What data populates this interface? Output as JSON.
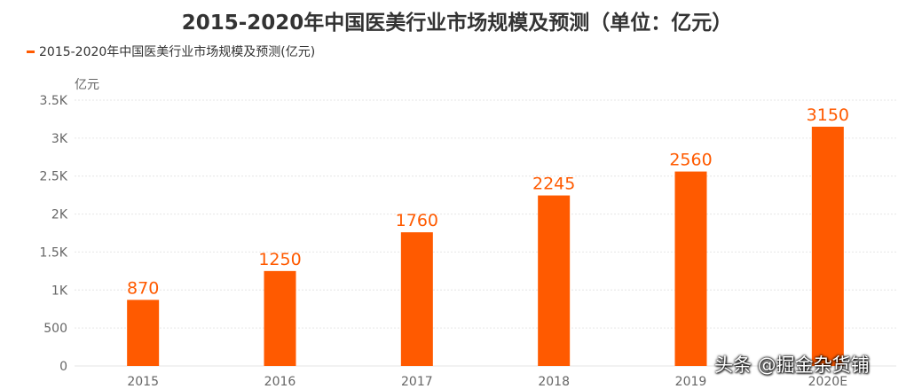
{
  "chart_data": {
    "type": "bar",
    "title": "2015-2020年中国医美行业市场规模及预测（单位：亿元）",
    "ylabel": "亿元",
    "xlabel": "",
    "categories": [
      "2015",
      "2016",
      "2017",
      "2018",
      "2019",
      "2020E"
    ],
    "series": [
      {
        "name": "2015-2020年中国医美行业市场规模及预测(亿元)",
        "values": [
          870,
          1250,
          1760,
          2245,
          2560,
          3150
        ]
      }
    ],
    "ylim": [
      0,
      3500
    ],
    "yticks": [
      0,
      500,
      1000,
      1500,
      2000,
      2500,
      3000,
      3500
    ],
    "ytick_labels": [
      "0",
      "500",
      "1K",
      "1.5K",
      "2K",
      "2.5K",
      "3K",
      "3.5K"
    ],
    "grid": true,
    "legend_position": "top-left",
    "data_labels": true
  },
  "colors": {
    "bar": "#ff5a00",
    "label": "#ff5a00",
    "grid": "#e6e6e6",
    "axis_text": "#666666"
  },
  "watermark": "头条 @掘金杂货铺"
}
